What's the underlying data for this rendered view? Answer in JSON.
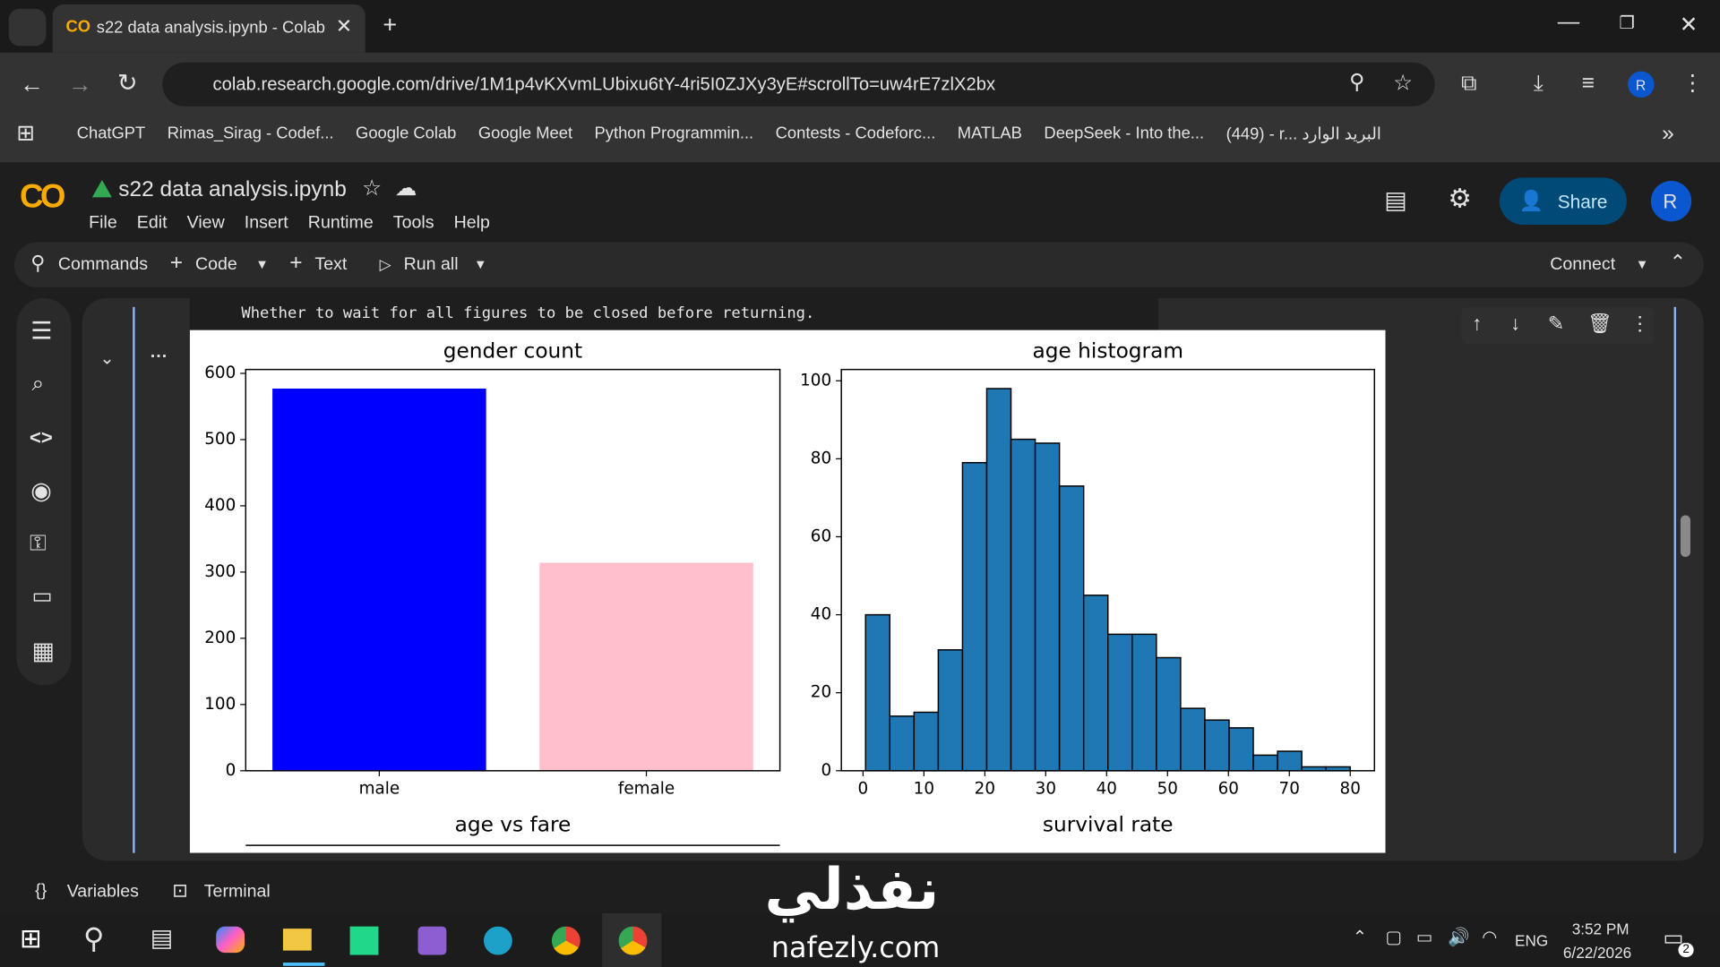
{
  "browser": {
    "tab_title": "s22 data analysis.ipynb - Colab",
    "url": "colab.research.google.com/drive/1M1p4vKXvmLUbixu6tY-4ri5I0ZJXy3yE#scrollTo=uw4rE7zlX2bx",
    "profile": "R",
    "bookmarks": [
      "ChatGPT",
      "Rimas_Sirag - Codef...",
      "Google Colab",
      "Google Meet",
      "Python Programmin...",
      "Contests - Codeforc...",
      "MATLAB",
      "DeepSeek - Into the...",
      "(449) - r... البريد الوارد"
    ]
  },
  "colab": {
    "notebook": "s22 data analysis.ipynb",
    "menu": [
      "File",
      "Edit",
      "View",
      "Insert",
      "Runtime",
      "Tools",
      "Help"
    ],
    "share": "Share",
    "avatar": "R",
    "toolbar": {
      "commands": "Commands",
      "code": "Code",
      "text": "Text",
      "run_all": "Run all",
      "connect": "Connect"
    }
  },
  "cell": {
    "output_text": "Whether to wait for all figures to be closed before returning.",
    "more_titles": [
      "age vs fare",
      "survival rate"
    ]
  },
  "chart_data": [
    {
      "type": "bar",
      "title": "gender count",
      "categories": [
        "male",
        "female"
      ],
      "values": [
        577,
        314
      ],
      "colors": [
        "#0000ff",
        "#ffc0cb"
      ],
      "ylim": [
        0,
        605.85
      ],
      "yticks": [
        0,
        100,
        200,
        300,
        400,
        500,
        600
      ]
    },
    {
      "type": "histogram",
      "title": "age histogram",
      "bins": [
        0.42,
        4.399,
        8.378,
        12.357,
        16.336,
        20.315,
        24.294,
        28.273,
        32.252,
        36.231,
        40.21,
        44.189,
        48.168,
        52.147,
        56.126,
        60.105,
        64.084,
        68.063,
        72.042,
        76.021,
        80.0
      ],
      "values": [
        40,
        14,
        15,
        31,
        79,
        98,
        85,
        84,
        73,
        45,
        35,
        35,
        29,
        16,
        13,
        11,
        4,
        5,
        1,
        1
      ],
      "color": "#1f77b4",
      "edgecolor": "#000000",
      "xlim": [
        -3.559,
        83.979
      ],
      "ylim": [
        0,
        102.9
      ],
      "xticks": [
        0,
        10,
        20,
        30,
        40,
        50,
        60,
        70,
        80
      ],
      "yticks": [
        0,
        20,
        40,
        60,
        80,
        100
      ]
    }
  ],
  "bottom": {
    "variables": "Variables",
    "terminal": "Terminal"
  },
  "watermark": {
    "arabic": "نفذلي",
    "latin": "nafezly.com"
  },
  "taskbar": {
    "language": "ENG",
    "time": "3:52 PM",
    "date": "6/22/2026",
    "notifications": "2"
  }
}
